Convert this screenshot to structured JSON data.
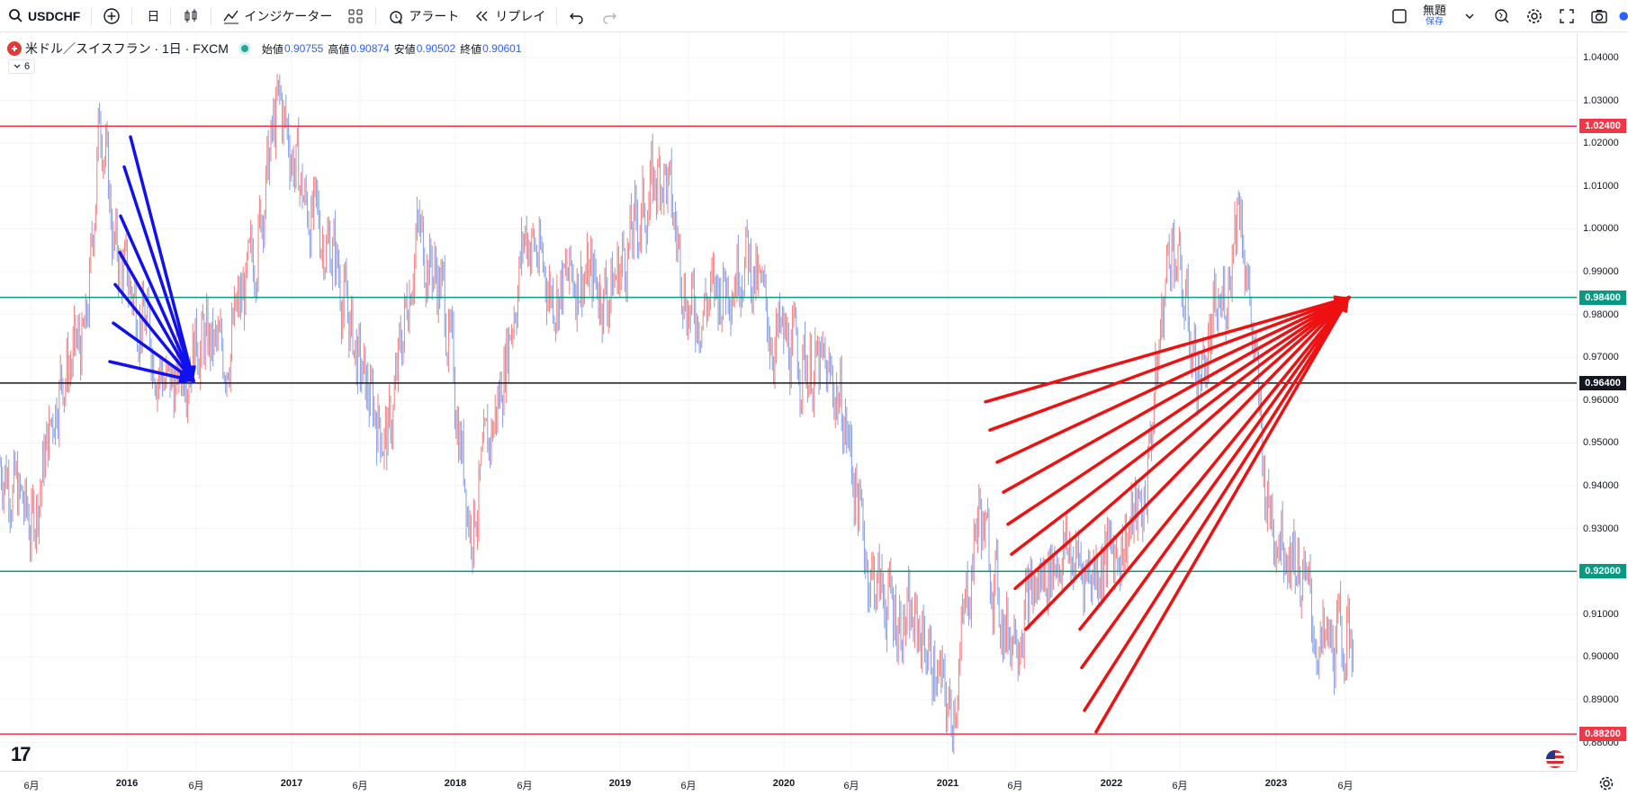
{
  "toolbar": {
    "symbol": "USDCHF",
    "interval": "日",
    "indicators": "インジケーター",
    "alert": "アラート",
    "replay": "リプレイ",
    "save_title": "無題",
    "save_sub": "保存"
  },
  "legend": {
    "title": "米ドル／スイスフラン · 1日 · FXCM",
    "open_label": "始値",
    "open": "0.90755",
    "high_label": "高値",
    "high": "0.90874",
    "low_label": "安値",
    "low": "0.90502",
    "close_label": "終値",
    "close": "0.90601",
    "collapse_count": "6"
  },
  "colors": {
    "up": "#ef5350",
    "down": "#5b7fe0",
    "red_line": "#f23645",
    "teal_line": "#089981",
    "black_line": "#131722",
    "blue_arrow": "#1111ee",
    "red_arrow": "#ee1111"
  },
  "chart_data": {
    "type": "line",
    "price_ticks": [
      "1.04000",
      "1.03000",
      "1.02000",
      "1.01000",
      "1.00000",
      "0.99000",
      "0.98000",
      "0.97000",
      "0.96000",
      "0.95000",
      "0.94000",
      "0.93000",
      "0.92000",
      "0.91000",
      "0.90000",
      "0.89000",
      "0.88000"
    ],
    "time_ticks": [
      {
        "label": "6月",
        "bold": false
      },
      {
        "label": "2016",
        "bold": true
      },
      {
        "label": "6月",
        "bold": false
      },
      {
        "label": "2017",
        "bold": true
      },
      {
        "label": "6月",
        "bold": false
      },
      {
        "label": "2018",
        "bold": true
      },
      {
        "label": "6月",
        "bold": false
      },
      {
        "label": "2019",
        "bold": true
      },
      {
        "label": "6月",
        "bold": false
      },
      {
        "label": "2020",
        "bold": true
      },
      {
        "label": "6月",
        "bold": false
      },
      {
        "label": "2021",
        "bold": true
      },
      {
        "label": "6月",
        "bold": false
      },
      {
        "label": "2022",
        "bold": true
      },
      {
        "label": "6月",
        "bold": false
      },
      {
        "label": "2023",
        "bold": true
      },
      {
        "label": "6月",
        "bold": false
      }
    ],
    "horizontal_lines": [
      {
        "price": 1.024,
        "label": "1.02400",
        "color": "#f23645"
      },
      {
        "price": 0.984,
        "label": "0.98400",
        "color": "#089981"
      },
      {
        "price": 0.964,
        "label": "0.96400",
        "color": "#131722"
      },
      {
        "price": 0.92,
        "label": "0.92000",
        "color": "#089981"
      },
      {
        "price": 0.882,
        "label": "0.88200",
        "color": "#f23645"
      }
    ],
    "price_path": [
      [
        "2015-04",
        0.945
      ],
      [
        "2015-06",
        0.93
      ],
      [
        "2015-08",
        0.965
      ],
      [
        "2015-10",
        0.975
      ],
      [
        "2015-11",
        1.03
      ],
      [
        "2015-12",
        0.995
      ],
      [
        "2016-02",
        0.98
      ],
      [
        "2016-04",
        0.962
      ],
      [
        "2016-06",
        0.975
      ],
      [
        "2016-08",
        0.97
      ],
      [
        "2016-10",
        0.99
      ],
      [
        "2016-12",
        1.03
      ],
      [
        "2017-02",
        1.005
      ],
      [
        "2017-04",
        0.995
      ],
      [
        "2017-06",
        0.965
      ],
      [
        "2017-08",
        0.95
      ],
      [
        "2017-10",
        1.0
      ],
      [
        "2017-12",
        0.985
      ],
      [
        "2018-02",
        0.93
      ],
      [
        "2018-04",
        0.96
      ],
      [
        "2018-06",
        1.0
      ],
      [
        "2018-08",
        0.985
      ],
      [
        "2018-10",
        0.99
      ],
      [
        "2018-12",
        0.985
      ],
      [
        "2019-02",
        1.0
      ],
      [
        "2019-04",
        1.015
      ],
      [
        "2019-06",
        0.98
      ],
      [
        "2019-08",
        0.985
      ],
      [
        "2019-10",
        0.995
      ],
      [
        "2019-12",
        0.975
      ],
      [
        "2020-02",
        0.97
      ],
      [
        "2020-04",
        0.965
      ],
      [
        "2020-05",
        0.96
      ],
      [
        "2020-07",
        0.92
      ],
      [
        "2020-09",
        0.91
      ],
      [
        "2020-11",
        0.905
      ],
      [
        "2021-01",
        0.885
      ],
      [
        "2021-03",
        0.935
      ],
      [
        "2021-05",
        0.905
      ],
      [
        "2021-07",
        0.915
      ],
      [
        "2021-09",
        0.925
      ],
      [
        "2021-11",
        0.92
      ],
      [
        "2022-01",
        0.925
      ],
      [
        "2022-03",
        0.935
      ],
      [
        "2022-05",
        1.0
      ],
      [
        "2022-07",
        0.965
      ],
      [
        "2022-09",
        0.985
      ],
      [
        "2022-10",
        1.01
      ],
      [
        "2022-12",
        0.935
      ],
      [
        "2023-02",
        0.925
      ],
      [
        "2023-04",
        0.9
      ],
      [
        "2023-06",
        0.905
      ]
    ],
    "ylim": [
      0.8734,
      1.0457
    ]
  }
}
